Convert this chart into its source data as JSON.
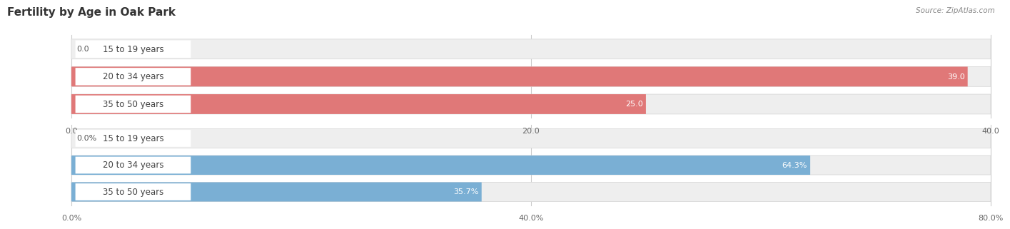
{
  "title": "Fertility by Age in Oak Park",
  "source": "Source: ZipAtlas.com",
  "top_chart": {
    "categories": [
      "15 to 19 years",
      "20 to 34 years",
      "35 to 50 years"
    ],
    "values": [
      0.0,
      39.0,
      25.0
    ],
    "max_value": 40.0,
    "tick_values": [
      0.0,
      20.0,
      40.0
    ],
    "tick_labels": [
      "0.0",
      "20.0",
      "40.0"
    ],
    "bar_color": "#E07878",
    "bar_bg_color": "#EFEFEF",
    "label_bg_color": "#FFFFFF"
  },
  "bottom_chart": {
    "categories": [
      "15 to 19 years",
      "20 to 34 years",
      "35 to 50 years"
    ],
    "values": [
      0.0,
      64.3,
      35.7
    ],
    "max_value": 80.0,
    "tick_values": [
      0.0,
      40.0,
      80.0
    ],
    "tick_labels": [
      "0.0%",
      "40.0%",
      "80.0%"
    ],
    "bar_color": "#7AAFD4",
    "bar_bg_color": "#EFEFEF",
    "label_bg_color": "#FFFFFF"
  },
  "background_color": "#FFFFFF",
  "title_color": "#333333",
  "title_fontsize": 11,
  "source_fontsize": 7.5,
  "axis_fontsize": 8,
  "label_fontsize": 8.5,
  "value_fontsize": 8
}
